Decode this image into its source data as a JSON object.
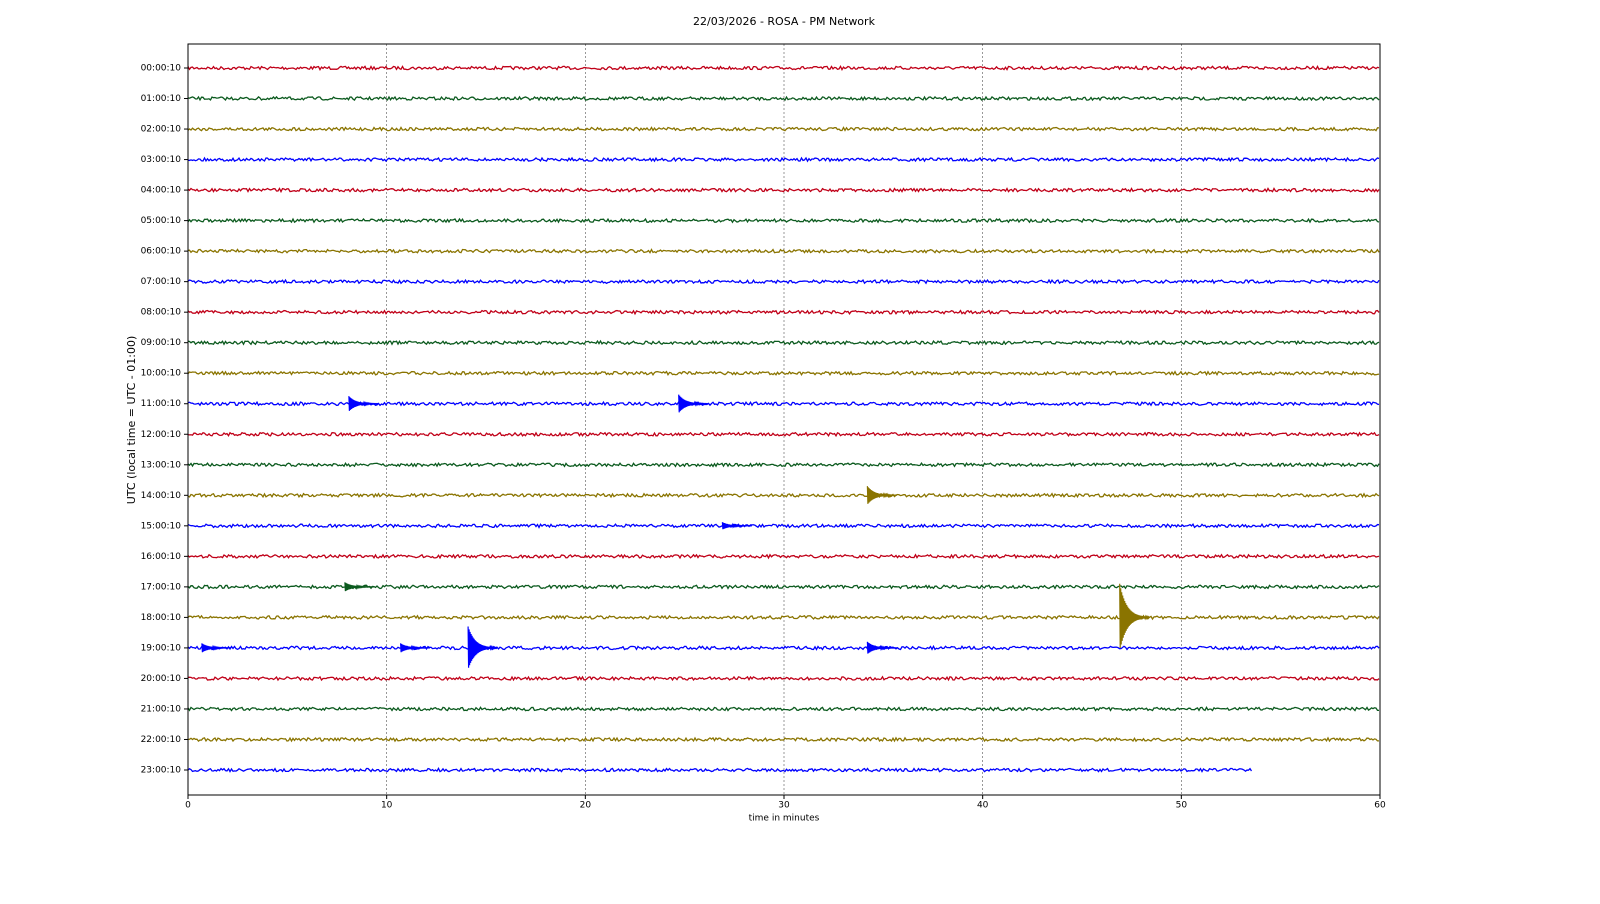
{
  "chart_data": {
    "type": "helicorder",
    "title": "22/03/2026 - ROSA - PM Network",
    "x_label": "time in minutes",
    "y_label": "UTC (local time = UTC - 01:00)",
    "xlim": [
      0,
      60
    ],
    "xticks": [
      0,
      10,
      20,
      30,
      40,
      50,
      60
    ],
    "grid": true,
    "series": [
      {
        "name": "00:00:10",
        "color": "#c00018",
        "end": 60,
        "events": []
      },
      {
        "name": "01:00:10",
        "color": "#0b5a1e",
        "end": 60,
        "events": []
      },
      {
        "name": "02:00:10",
        "color": "#8a7400",
        "end": 60,
        "events": []
      },
      {
        "name": "03:00:10",
        "color": "#0000ff",
        "end": 60,
        "events": []
      },
      {
        "name": "04:00:10",
        "color": "#c00018",
        "end": 60,
        "events": []
      },
      {
        "name": "05:00:10",
        "color": "#0b5a1e",
        "end": 60,
        "events": []
      },
      {
        "name": "06:00:10",
        "color": "#8a7400",
        "end": 60,
        "events": []
      },
      {
        "name": "07:00:10",
        "color": "#0000ff",
        "end": 60,
        "events": []
      },
      {
        "name": "08:00:10",
        "color": "#c00018",
        "end": 60,
        "events": []
      },
      {
        "name": "09:00:10",
        "color": "#0b5a1e",
        "end": 60,
        "events": []
      },
      {
        "name": "10:00:10",
        "color": "#8a7400",
        "end": 60,
        "events": []
      },
      {
        "name": "11:00:10",
        "color": "#0000ff",
        "end": 60,
        "events": [
          {
            "x": 8.2,
            "amplitude": 0.25
          },
          {
            "x": 24.8,
            "amplitude": 0.3
          }
        ]
      },
      {
        "name": "12:00:10",
        "color": "#c00018",
        "end": 60,
        "events": []
      },
      {
        "name": "13:00:10",
        "color": "#0b5a1e",
        "end": 60,
        "events": []
      },
      {
        "name": "14:00:10",
        "color": "#8a7400",
        "end": 60,
        "events": [
          {
            "x": 34.3,
            "amplitude": 0.3
          }
        ]
      },
      {
        "name": "15:00:10",
        "color": "#0000ff",
        "end": 60,
        "events": [
          {
            "x": 27,
            "amplitude": 0.12
          }
        ]
      },
      {
        "name": "16:00:10",
        "color": "#c00018",
        "end": 60,
        "events": []
      },
      {
        "name": "17:00:10",
        "color": "#0b5a1e",
        "end": 60,
        "events": [
          {
            "x": 8,
            "amplitude": 0.15
          }
        ]
      },
      {
        "name": "18:00:10",
        "color": "#8a7400",
        "end": 60,
        "events": [
          {
            "x": 47,
            "amplitude": 1.1
          }
        ]
      },
      {
        "name": "19:00:10",
        "color": "#0000ff",
        "end": 60,
        "events": [
          {
            "x": 0.8,
            "amplitude": 0.15
          },
          {
            "x": 10.8,
            "amplitude": 0.15
          },
          {
            "x": 14.2,
            "amplitude": 0.7
          },
          {
            "x": 34.3,
            "amplitude": 0.2
          }
        ]
      },
      {
        "name": "20:00:10",
        "color": "#c00018",
        "end": 60,
        "events": []
      },
      {
        "name": "21:00:10",
        "color": "#0b5a1e",
        "end": 60,
        "events": []
      },
      {
        "name": "22:00:10",
        "color": "#8a7400",
        "end": 60,
        "events": []
      },
      {
        "name": "23:00:10",
        "color": "#0000ff",
        "end": 53.6,
        "events": []
      }
    ]
  }
}
